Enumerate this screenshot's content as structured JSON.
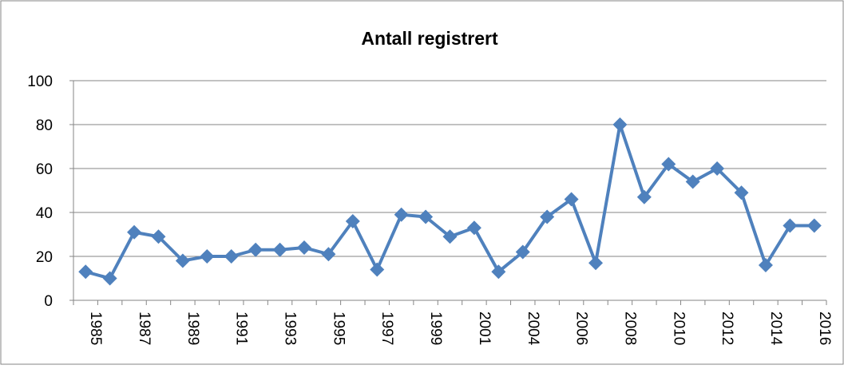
{
  "chart_data": {
    "type": "line",
    "title": "Antall registrert",
    "categories": [
      "1985",
      null,
      "1987",
      null,
      "1989",
      null,
      "1991",
      null,
      "1993",
      null,
      "1995",
      null,
      "1997",
      null,
      "1999",
      null,
      "2001",
      null,
      "2004",
      null,
      "2006",
      null,
      "2008",
      null,
      "2010",
      null,
      "2012",
      null,
      "2014",
      null,
      "2016"
    ],
    "series": [
      {
        "name": "Antall registrert",
        "color": "#4f81bd",
        "values": [
          13,
          10,
          31,
          29,
          18,
          20,
          20,
          23,
          23,
          24,
          21,
          36,
          14,
          39,
          38,
          29,
          33,
          13,
          22,
          38,
          46,
          17,
          80,
          47,
          62,
          54,
          60,
          49,
          16,
          34,
          34
        ]
      }
    ],
    "ylim": [
      0,
      100
    ],
    "yticks": [
      0,
      20,
      40,
      60,
      80,
      100
    ],
    "grid": true
  }
}
